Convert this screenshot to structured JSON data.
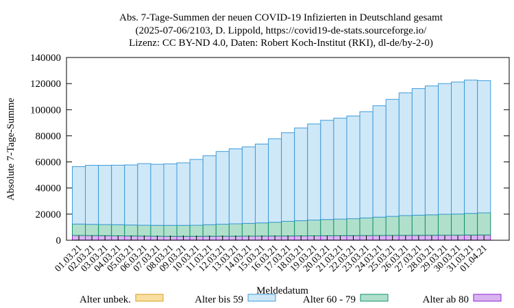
{
  "title_lines": [
    "Abs. 7-Tage-Summen der neuen COVID-19 Infizierten in Deutschland gesamt",
    "(2025-07-06/2103, D. Lippold, https://covid19-de-stats.sourceforge.io/",
    "Lizenz: CC BY-ND 4.0, Daten: Robert Koch-Institut (RKI), dl-de/by-2-0)"
  ],
  "colors": {
    "alter_unbek": "#f8dea0",
    "alter_unbek_stroke": "#d9a020",
    "alter_bis_59": "#cfe8f8",
    "alter_bis_59_stroke": "#3a9ad8",
    "alter_60_79": "#b0e0cc",
    "alter_60_79_stroke": "#10906a",
    "alter_ab_80": "#d8b4f0",
    "alter_ab_80_stroke": "#9020d0"
  },
  "chart_data": {
    "type": "bar",
    "stacked": true,
    "xlabel": "Meldedatum",
    "ylabel": "Absolute 7-Tage-Summe",
    "ylim": [
      0,
      140000
    ],
    "yticks": [
      0,
      20000,
      40000,
      60000,
      80000,
      100000,
      120000,
      140000
    ],
    "grid": false,
    "legend_position": "bottom",
    "categories": [
      "01.03.21",
      "02.03.21",
      "03.03.21",
      "04.03.21",
      "05.03.21",
      "06.03.21",
      "07.03.21",
      "08.03.21",
      "09.03.21",
      "10.03.21",
      "11.03.21",
      "12.03.21",
      "13.03.21",
      "14.03.21",
      "15.03.21",
      "16.03.21",
      "17.03.21",
      "18.03.21",
      "19.03.21",
      "20.03.21",
      "21.03.21",
      "22.03.21",
      "23.03.21",
      "24.03.21",
      "25.03.21",
      "26.03.21",
      "27.03.21",
      "28.03.21",
      "29.03.21",
      "30.03.21",
      "31.03.21",
      "01.04.21"
    ],
    "series": [
      {
        "name": "Alter unbek.",
        "values": [
          100,
          100,
          100,
          100,
          100,
          100,
          100,
          100,
          100,
          100,
          100,
          100,
          100,
          100,
          100,
          100,
          100,
          100,
          100,
          100,
          100,
          100,
          100,
          100,
          100,
          100,
          100,
          100,
          100,
          100,
          100,
          100
        ]
      },
      {
        "name": "Alter ab 80",
        "values": [
          3600,
          3500,
          3400,
          3300,
          3200,
          3100,
          3000,
          2900,
          2900,
          2900,
          2950,
          3000,
          3000,
          3050,
          3100,
          3150,
          3200,
          3250,
          3300,
          3350,
          3400,
          3450,
          3500,
          3550,
          3600,
          3650,
          3700,
          3750,
          3800,
          3850,
          3900,
          3950
        ]
      },
      {
        "name": "Alter 60 - 79",
        "values": [
          8700,
          8600,
          8500,
          8500,
          8400,
          8300,
          8300,
          8400,
          8400,
          8500,
          8850,
          9200,
          9500,
          9750,
          10100,
          10550,
          11200,
          11650,
          12100,
          12450,
          12700,
          12950,
          13500,
          14050,
          14600,
          15150,
          15400,
          15650,
          16000,
          16150,
          16600,
          16950
        ]
      },
      {
        "name": "Alter bis 59",
        "values": [
          44000,
          45200,
          45400,
          45600,
          46000,
          47200,
          46800,
          47100,
          47900,
          50400,
          52800,
          55700,
          57400,
          58600,
          60400,
          63900,
          67900,
          71000,
          73600,
          76000,
          77300,
          78700,
          81400,
          85300,
          89600,
          94000,
          97000,
          98700,
          100100,
          101100,
          102100,
          101300
        ]
      }
    ]
  }
}
